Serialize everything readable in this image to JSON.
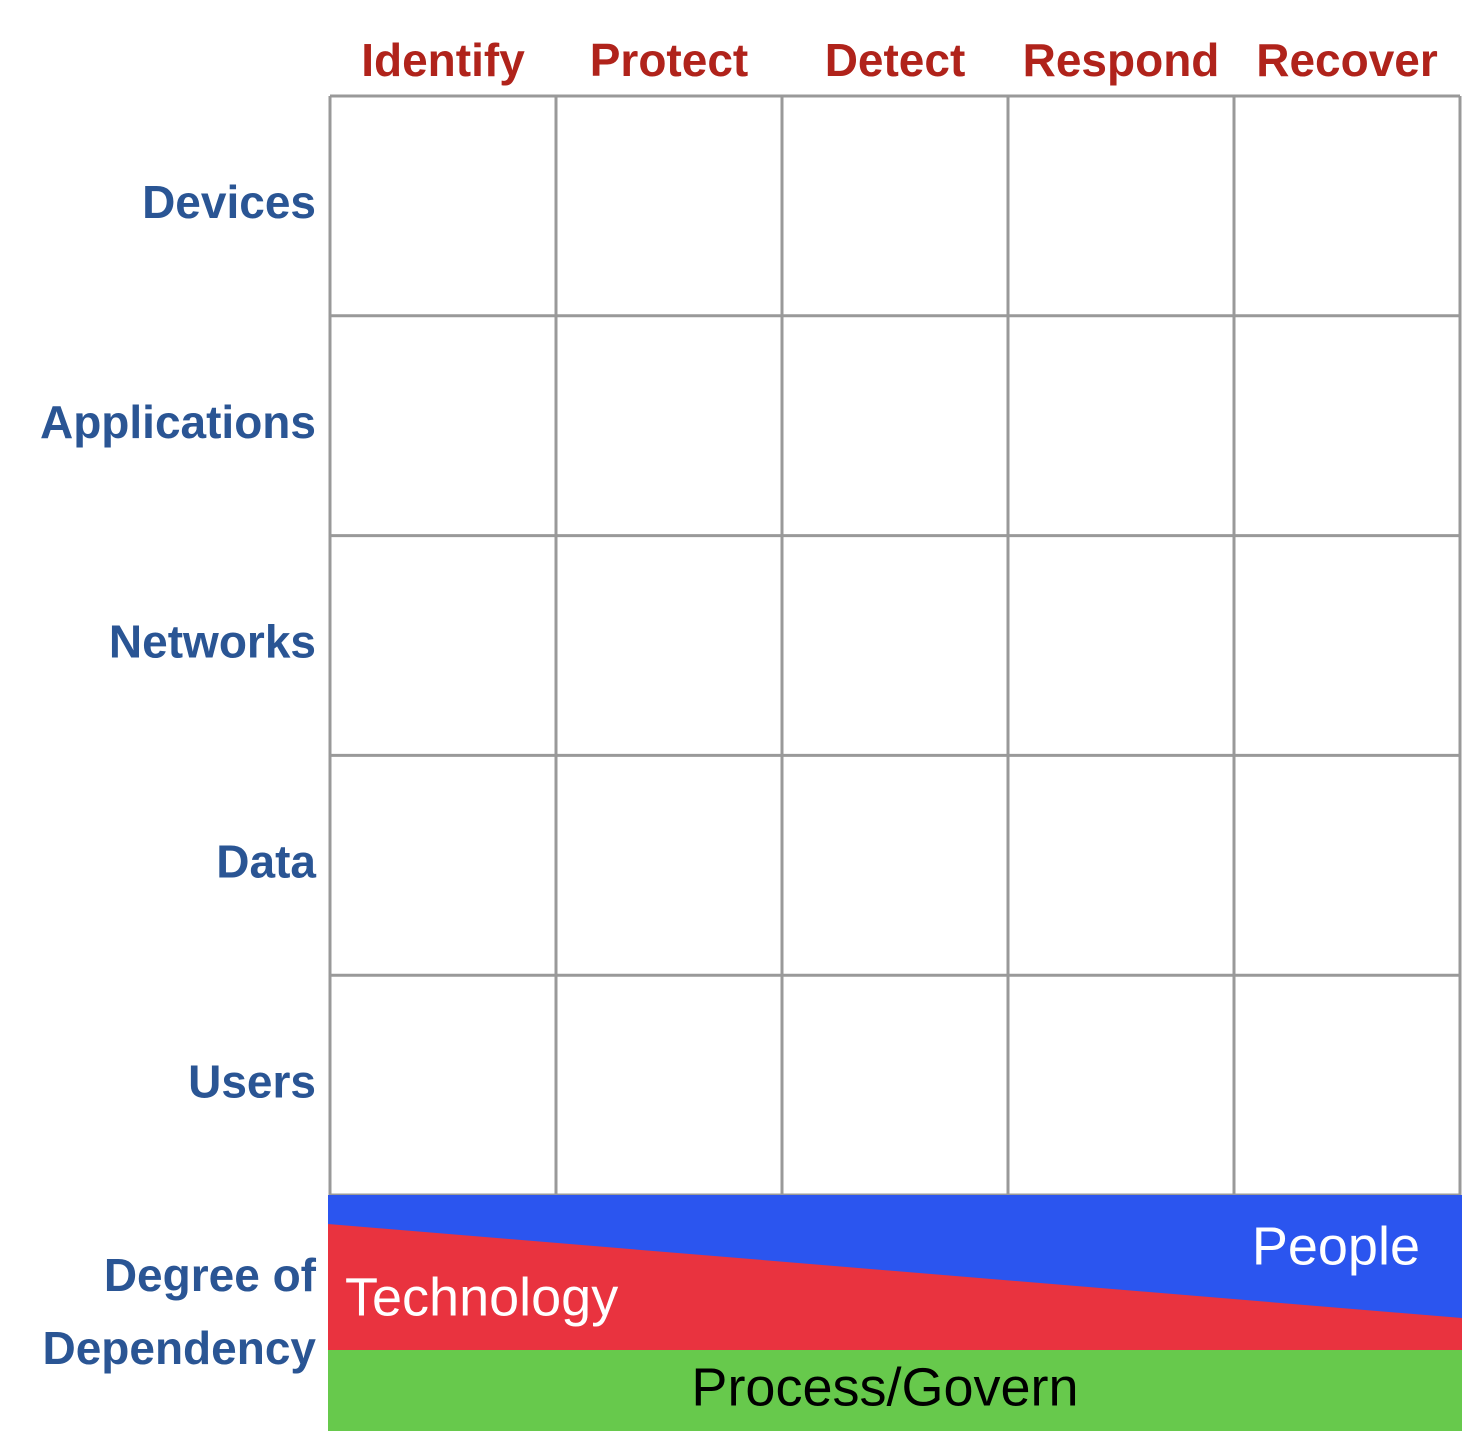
{
  "matrix": {
    "columns": [
      "Identify",
      "Protect",
      "Detect",
      "Respond",
      "Recover"
    ],
    "rows": [
      "Devices",
      "Applications",
      "Networks",
      "Data",
      "Users"
    ],
    "dependency": {
      "label": [
        "Degree of",
        "Dependency"
      ],
      "layers": {
        "people": "People",
        "technology": "Technology",
        "process": "Process/Govern"
      }
    }
  }
}
